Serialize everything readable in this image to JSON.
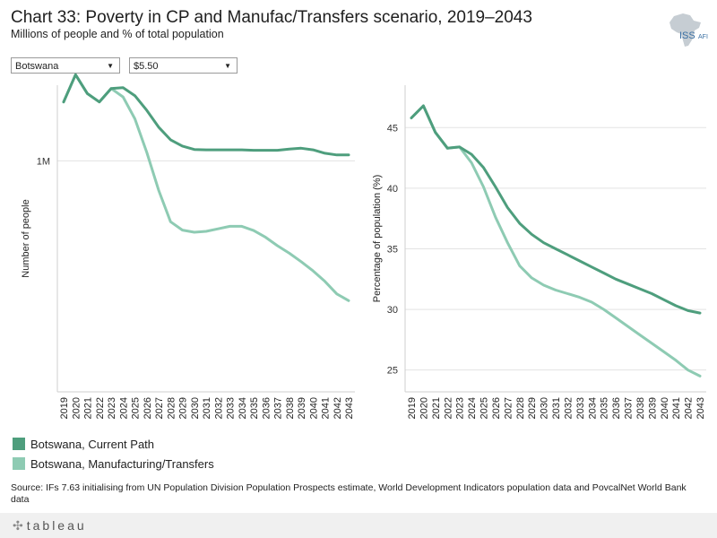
{
  "title": "Chart 33: Poverty in CP and Manufac/Transfers scenario, 2019–2043",
  "subtitle": "Millions of people and % of total population",
  "logo": {
    "text": "ISS",
    "suffix": "AFI"
  },
  "filters": {
    "country": "Botswana",
    "threshold": "$5.50"
  },
  "colors": {
    "current_path": "#4e9e7d",
    "manufacturing": "#8ecbb3"
  },
  "legend": [
    {
      "label": "Botswana, Current Path",
      "color": "#4e9e7d"
    },
    {
      "label": "Botswana, Manufacturing/Transfers",
      "color": "#8ecbb3"
    }
  ],
  "source": "Source: IFs 7.63 initialising from UN Population Division Population Prospects estimate, World Development Indicators population data and PovcalNet World Bank data",
  "footer": {
    "brand": "tableau"
  },
  "chart_data": [
    {
      "type": "line",
      "title": "",
      "ylabel": "Number of people",
      "xlabel": "",
      "x": [
        2019,
        2020,
        2021,
        2022,
        2023,
        2024,
        2025,
        2026,
        2027,
        2028,
        2029,
        2030,
        2031,
        2032,
        2033,
        2034,
        2035,
        2036,
        2037,
        2038,
        2039,
        2040,
        2041,
        2042,
        2043
      ],
      "ylim": [
        0.45,
        1.18
      ],
      "yticks": [
        {
          "value": 1.0,
          "label": "1M"
        }
      ],
      "grid": true,
      "series": [
        {
          "name": "Botswana, Current Path",
          "values": [
            1.14,
            1.205,
            1.16,
            1.14,
            1.172,
            1.174,
            1.155,
            1.12,
            1.08,
            1.05,
            1.035,
            1.027,
            1.026,
            1.026,
            1.026,
            1.026,
            1.025,
            1.025,
            1.025,
            1.028,
            1.03,
            1.026,
            1.018,
            1.014,
            1.014
          ]
        },
        {
          "name": "Botswana, Manufacturing/Transfers",
          "values": [
            1.14,
            1.205,
            1.16,
            1.14,
            1.172,
            1.152,
            1.1,
            1.02,
            0.93,
            0.855,
            0.835,
            0.83,
            0.832,
            0.838,
            0.844,
            0.844,
            0.834,
            0.818,
            0.798,
            0.78,
            0.76,
            0.738,
            0.713,
            0.683,
            0.667
          ]
        }
      ]
    },
    {
      "type": "line",
      "title": "",
      "ylabel": "Percentage of population (%)",
      "xlabel": "",
      "x": [
        2019,
        2020,
        2021,
        2022,
        2023,
        2024,
        2025,
        2026,
        2027,
        2028,
        2029,
        2030,
        2031,
        2032,
        2033,
        2034,
        2035,
        2036,
        2037,
        2038,
        2039,
        2040,
        2041,
        2042,
        2043
      ],
      "ylim": [
        23.2,
        48.5
      ],
      "yticks": [
        {
          "value": 25,
          "label": "25"
        },
        {
          "value": 30,
          "label": "30"
        },
        {
          "value": 35,
          "label": "35"
        },
        {
          "value": 40,
          "label": "40"
        },
        {
          "value": 45,
          "label": "45"
        }
      ],
      "grid": true,
      "series": [
        {
          "name": "Botswana, Current Path",
          "values": [
            45.8,
            46.8,
            44.6,
            43.3,
            43.4,
            42.8,
            41.7,
            40.1,
            38.4,
            37.1,
            36.2,
            35.5,
            35.0,
            34.5,
            34.0,
            33.5,
            33.0,
            32.5,
            32.1,
            31.7,
            31.3,
            30.8,
            30.3,
            29.9,
            29.7
          ]
        },
        {
          "name": "Botswana, Manufacturing/Transfers",
          "values": [
            45.8,
            46.8,
            44.6,
            43.3,
            43.4,
            42.1,
            40.1,
            37.6,
            35.5,
            33.6,
            32.6,
            32.0,
            31.6,
            31.3,
            31.0,
            30.6,
            30.0,
            29.3,
            28.6,
            27.9,
            27.2,
            26.5,
            25.8,
            25.0,
            24.5
          ]
        }
      ]
    }
  ]
}
